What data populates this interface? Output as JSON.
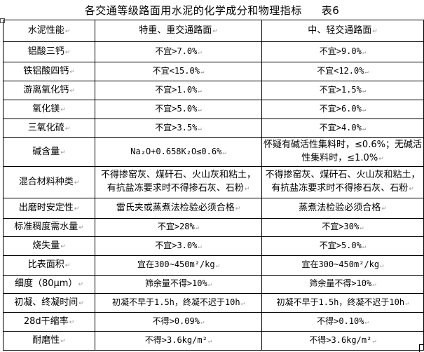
{
  "document": {
    "title": "各交通等级路面用水泥的化学成分和物理指标",
    "table_number": "表6"
  },
  "table": {
    "headers": [
      "水泥性能",
      "特重、重交通路面",
      "中、轻交通路面"
    ],
    "rows": [
      [
        "铝酸三钙",
        "不宜>7.0%",
        "不宜>9.0%"
      ],
      [
        "铁铝酸四钙",
        "不宜<15.0%",
        "不宜<12.0%"
      ],
      [
        "游离氧化钙",
        "不宜>1.0%",
        "不宜>1.5%"
      ],
      [
        "氧化镁",
        "不宜>5.0%",
        "不宜>6.0%"
      ],
      [
        "三氧化硫",
        "不宜>3.5%",
        "不宜>4.0%"
      ],
      [
        "碱含量",
        "Na₂O+0.658K₂O≤0.6%",
        "怀疑有碱活性集料时，≤0.6%；无碱活性集料时，≤1.0%"
      ],
      [
        "混合材料种类",
        "不得掺窑灰、煤矸石、火山灰和粘土，有抗盐冻要求时不得掺石灰、石粉",
        "不得掺窑灰、煤矸石、火山灰和粘土，有抗盐冻要求时不得掺石灰、石粉"
      ],
      [
        "出磨时安定性",
        "雷氏夹或蒸煮法检验必须合格",
        "蒸煮法检验必须合格"
      ],
      [
        "标准稠度需水量",
        "不宜>28%",
        "不宜>30%"
      ],
      [
        "烧失量",
        "不宜>3.0%",
        "不宜>5.0%"
      ],
      [
        "比表面积",
        "宜在300~450m²/kg",
        "宜在300~450m²/kg"
      ],
      [
        "细度（80μm）",
        "筛余量不得>10%",
        "筛余量不得>10%"
      ],
      [
        "初凝、终凝时间",
        "初凝不早于1.5h，终凝不迟于10h",
        "初凝不早于1.5h，终凝不迟于10h"
      ],
      [
        "28d干缩率",
        "不得>0.09%",
        "不得>0.10%"
      ],
      [
        "耐磨性",
        "不得>3.6kg/m²",
        "不得>3.6kg/m²"
      ]
    ]
  }
}
